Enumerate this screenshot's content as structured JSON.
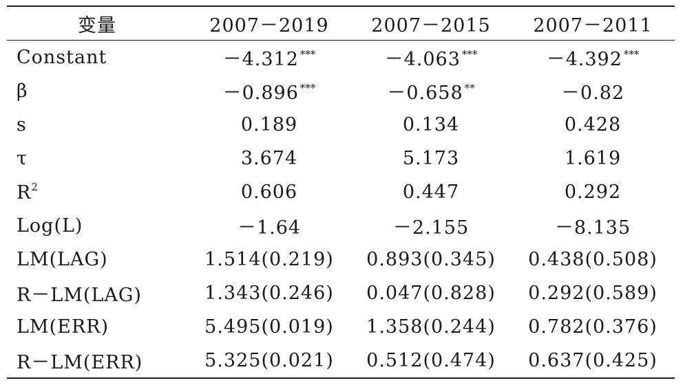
{
  "table": {
    "headers": [
      "变量",
      "2007－2019",
      "2007－2015",
      "2007－2011"
    ],
    "rows": [
      {
        "var": "Constant",
        "var_sup": "",
        "cells": [
          {
            "value": "－4.312",
            "stars": "***"
          },
          {
            "value": "－4.063",
            "stars": "***"
          },
          {
            "value": "－4.392",
            "stars": "***"
          }
        ]
      },
      {
        "var": "β",
        "var_sup": "",
        "cells": [
          {
            "value": "－0.896",
            "stars": "***"
          },
          {
            "value": "－0.658",
            "stars": "**"
          },
          {
            "value": "－0.82",
            "stars": ""
          }
        ]
      },
      {
        "var": "s",
        "var_sup": "",
        "cells": [
          {
            "value": "0.189",
            "stars": ""
          },
          {
            "value": "0.134",
            "stars": ""
          },
          {
            "value": "0.428",
            "stars": ""
          }
        ]
      },
      {
        "var": "τ",
        "var_sup": "",
        "cells": [
          {
            "value": "3.674",
            "stars": ""
          },
          {
            "value": "5.173",
            "stars": ""
          },
          {
            "value": "1.619",
            "stars": ""
          }
        ]
      },
      {
        "var": "R",
        "var_sup": "2",
        "cells": [
          {
            "value": "0.606",
            "stars": ""
          },
          {
            "value": "0.447",
            "stars": ""
          },
          {
            "value": "0.292",
            "stars": ""
          }
        ]
      },
      {
        "var": "Log(L)",
        "var_sup": "",
        "cells": [
          {
            "value": "－1.64",
            "stars": ""
          },
          {
            "value": "－2.155",
            "stars": ""
          },
          {
            "value": "－8.135",
            "stars": ""
          }
        ]
      },
      {
        "var": "LM(LAG)",
        "var_sup": "",
        "cells": [
          {
            "value": "1.514(0.219)",
            "stars": ""
          },
          {
            "value": "0.893(0.345)",
            "stars": ""
          },
          {
            "value": "0.438(0.508)",
            "stars": ""
          }
        ]
      },
      {
        "var": "R－LM(LAG)",
        "var_sup": "",
        "cells": [
          {
            "value": "1.343(0.246)",
            "stars": ""
          },
          {
            "value": "0.047(0.828)",
            "stars": ""
          },
          {
            "value": "0.292(0.589)",
            "stars": ""
          }
        ]
      },
      {
        "var": "LM(ERR)",
        "var_sup": "",
        "cells": [
          {
            "value": "5.495(0.019)",
            "stars": ""
          },
          {
            "value": "1.358(0.244)",
            "stars": ""
          },
          {
            "value": "0.782(0.376)",
            "stars": ""
          }
        ]
      },
      {
        "var": "R－LM(ERR)",
        "var_sup": "",
        "cells": [
          {
            "value": "5.325(0.021)",
            "stars": ""
          },
          {
            "value": "0.512(0.474)",
            "stars": ""
          },
          {
            "value": "0.637(0.425)",
            "stars": ""
          }
        ]
      }
    ]
  }
}
